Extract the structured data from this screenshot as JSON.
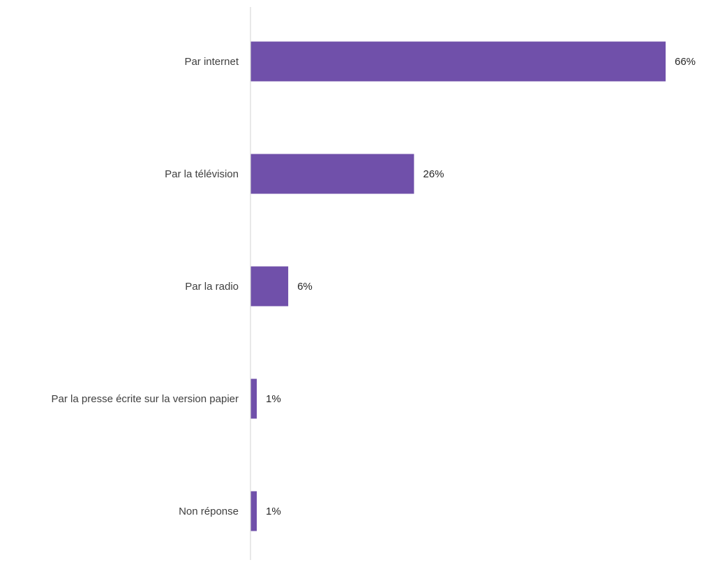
{
  "chart_data": {
    "type": "bar",
    "orientation": "horizontal",
    "title": "",
    "xlabel": "",
    "ylabel": "",
    "categories": [
      "Par internet",
      "Par la télévision",
      "Par la radio",
      "Par la presse écrite sur la version papier",
      "Non réponse"
    ],
    "values": [
      66,
      26,
      6,
      1,
      1
    ],
    "value_labels": [
      "66%",
      "26%",
      "6%",
      "1%",
      "1%"
    ],
    "xlim": [
      0,
      66
    ],
    "grid": false,
    "legend": "none",
    "bar_color": "#7050aa",
    "axis_color": "#d9d9d9"
  }
}
